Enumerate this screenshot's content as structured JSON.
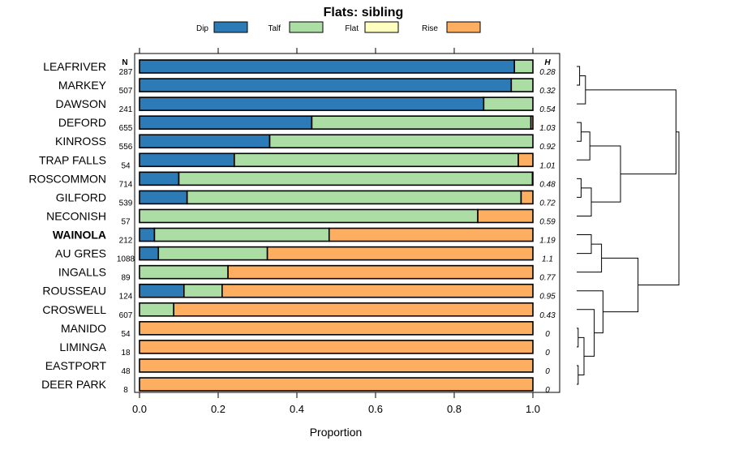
{
  "chart_data": {
    "type": "bar",
    "stacked": true,
    "orientation": "horizontal",
    "title": "Flats: sibling",
    "xlabel": "Proportion",
    "ylabel": "",
    "xlim": [
      0,
      1
    ],
    "xticks": [
      "0.0",
      "0.2",
      "0.4",
      "0.6",
      "0.8",
      "1.0"
    ],
    "legend_position": "top",
    "n_header": "N",
    "h_header": "H",
    "highlighted": "WAINOLA",
    "categories": [
      "LEAFRIVER",
      "MARKEY",
      "DAWSON",
      "DEFORD",
      "KINROSS",
      "TRAP FALLS",
      "ROSCOMMON",
      "GILFORD",
      "NECONISH",
      "WAINOLA",
      "AU GRES",
      "INGALLS",
      "ROUSSEAU",
      "CROSWELL",
      "MANIDO",
      "LIMINGA",
      "EASTPORT",
      "DEER PARK"
    ],
    "n": [
      "287",
      "507",
      "241",
      "655",
      "556",
      "54",
      "714",
      "539",
      "57",
      "212",
      "1088",
      "89",
      "124",
      "607",
      "54",
      "18",
      "48",
      "8"
    ],
    "h": [
      "0.28",
      "0.32",
      "0.54",
      "1.03",
      "0.92",
      "1.01",
      "0.48",
      "0.72",
      "0.59",
      "1.19",
      "1.1",
      "0.77",
      "0.95",
      "0.43",
      "0",
      "0",
      "0",
      "0"
    ],
    "series": [
      {
        "name": "Dip",
        "color": "#2c7bb6",
        "values": [
          0.953,
          0.945,
          0.875,
          0.438,
          0.331,
          0.241,
          0.1,
          0.121,
          0.0,
          0.038,
          0.048,
          0.0,
          0.113,
          0.0,
          0,
          0,
          0,
          0
        ]
      },
      {
        "name": "Talf",
        "color": "#abdda4",
        "values": [
          0.047,
          0.055,
          0.125,
          0.557,
          0.669,
          0.722,
          0.899,
          0.849,
          0.86,
          0.444,
          0.277,
          0.225,
          0.097,
          0.087,
          0,
          0,
          0,
          0
        ]
      },
      {
        "name": "Flat",
        "color": "#ffffbf",
        "values": [
          0.0,
          0.0,
          0.0,
          0.0,
          0.0,
          0.0,
          0.0,
          0.0,
          0.0,
          0.0,
          0.0,
          0.0,
          0.0,
          0.0,
          0,
          0,
          0,
          0
        ]
      },
      {
        "name": "Rise",
        "color": "#fdae61",
        "values": [
          0.0,
          0.0,
          0.0,
          0.005,
          0.0,
          0.037,
          0.001,
          0.03,
          0.14,
          0.518,
          0.675,
          0.775,
          0.79,
          0.913,
          1,
          1,
          1,
          1
        ]
      }
    ],
    "dendrogram": [
      {
        "left": "LEAFRIVER",
        "right": "MARKEY",
        "height": 0.02
      },
      {
        "left": "A",
        "right": "DAWSON",
        "height": 0.06
      },
      {
        "left": "DEFORD",
        "right": "KINROSS",
        "height": 0.03
      },
      {
        "left": "C",
        "right": "TRAP FALLS",
        "height": 0.09
      },
      {
        "left": "ROSCOMMON",
        "right": "GILFORD",
        "height": 0.03
      },
      {
        "left": "E",
        "right": "NECONISH",
        "height": 0.1
      },
      {
        "left": "D",
        "right": "F",
        "height": 0.3
      },
      {
        "left": "B",
        "right": "G",
        "height": 0.68
      },
      {
        "left": "WAINOLA",
        "right": "AU GRES",
        "height": 0.1
      },
      {
        "left": "I",
        "right": "INGALLS",
        "height": 0.17
      },
      {
        "left": "LIMINGA",
        "right": "MANIDO",
        "height": 0.01
      },
      {
        "left": "EASTPORT",
        "right": "DEER PARK",
        "height": 0.01
      },
      {
        "left": "K",
        "right": "L",
        "height": 0.05
      },
      {
        "left": "M",
        "right": "CROSWELL",
        "height": 0.12
      },
      {
        "left": "N",
        "right": "ROUSSEAU",
        "height": 0.18
      },
      {
        "left": "J",
        "right": "O",
        "height": 0.42
      },
      {
        "left": "H",
        "right": "P",
        "height": 0.7
      }
    ]
  }
}
